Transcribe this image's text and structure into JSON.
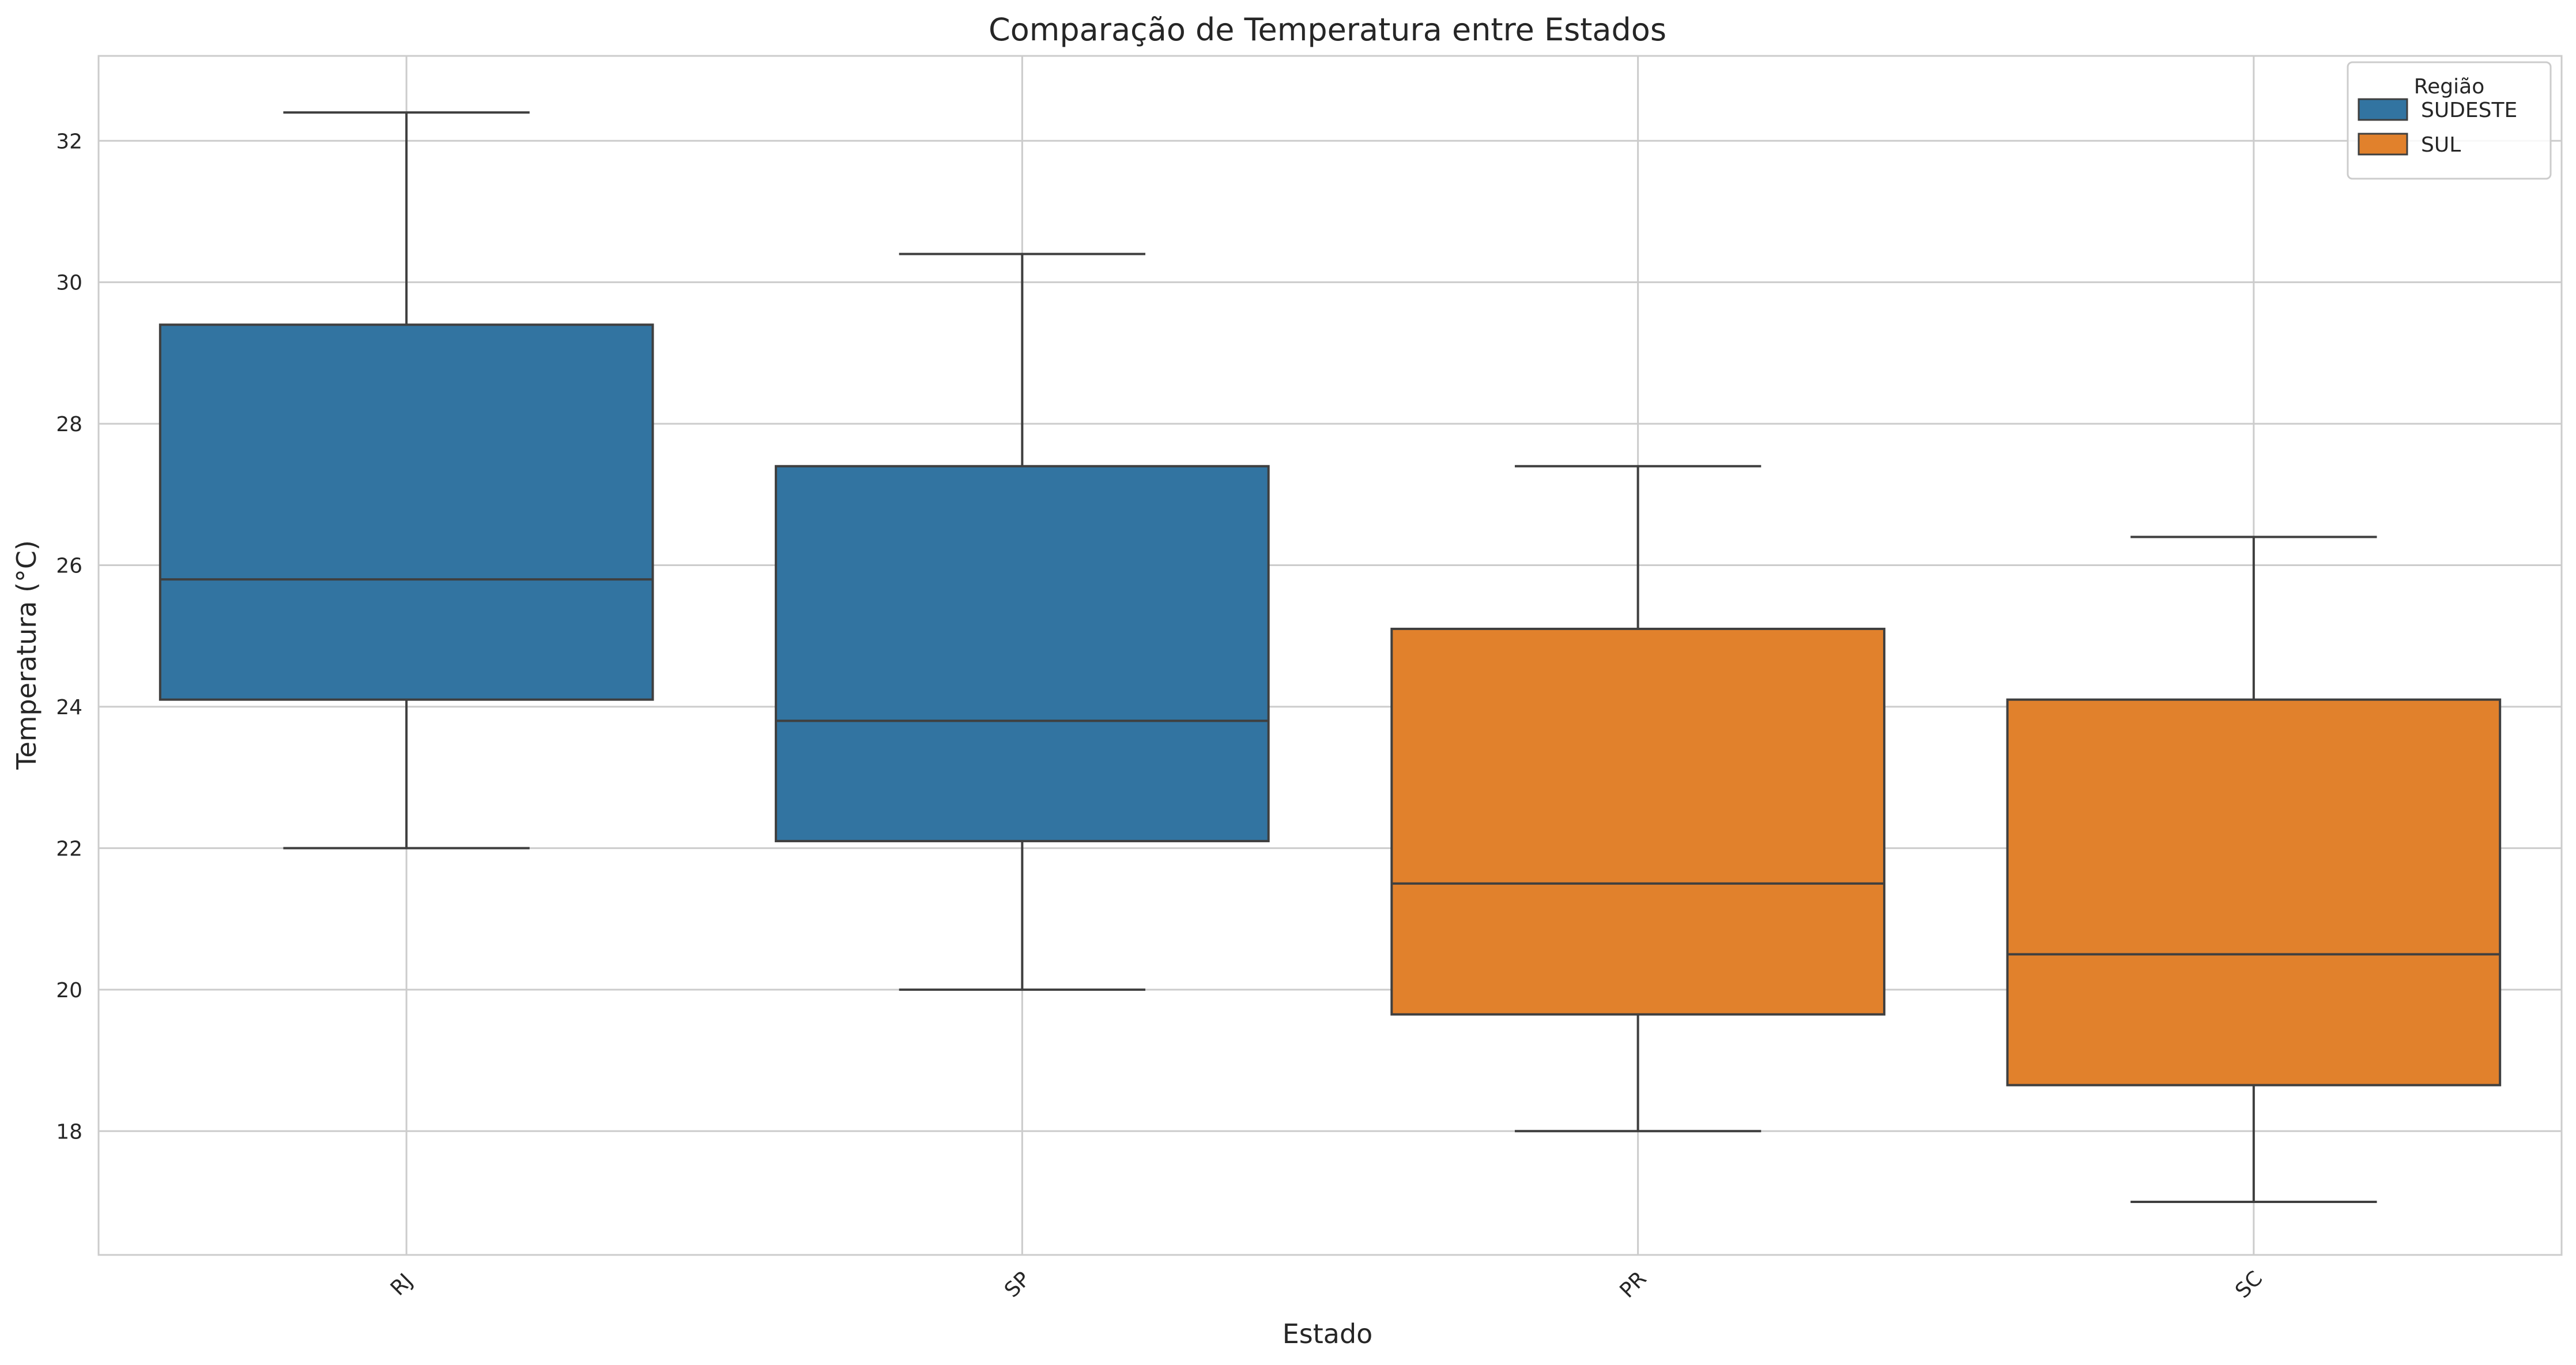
{
  "chart_data": {
    "type": "box",
    "title": "Comparação de Temperatura entre Estados",
    "xlabel": "Estado",
    "ylabel": "Temperatura (°C)",
    "ylim": [
      16.25,
      33.2
    ],
    "yticks": [
      18,
      20,
      22,
      24,
      26,
      28,
      30,
      32
    ],
    "grid": true,
    "legend": {
      "title": "Região",
      "placement": "top-right",
      "entries": [
        {
          "name": "SUDESTE",
          "color": "#3274a1"
        },
        {
          "name": "SUL",
          "color": "#e1812c"
        }
      ]
    },
    "categories": [
      "RJ",
      "SP",
      "PR",
      "SC"
    ],
    "boxes": [
      {
        "category": "RJ",
        "group": "SUDESTE",
        "whisker_low": 22.0,
        "q1": 24.1,
        "median": 25.8,
        "q3": 29.4,
        "whisker_high": 32.4
      },
      {
        "category": "SP",
        "group": "SUDESTE",
        "whisker_low": 20.0,
        "q1": 22.1,
        "median": 23.8,
        "q3": 27.4,
        "whisker_high": 30.4
      },
      {
        "category": "PR",
        "group": "SUL",
        "whisker_low": 18.0,
        "q1": 19.65,
        "median": 21.5,
        "q3": 25.1,
        "whisker_high": 27.4
      },
      {
        "category": "SC",
        "group": "SUL",
        "whisker_low": 17.0,
        "q1": 18.65,
        "median": 20.5,
        "q3": 24.1,
        "whisker_high": 26.4
      }
    ]
  }
}
